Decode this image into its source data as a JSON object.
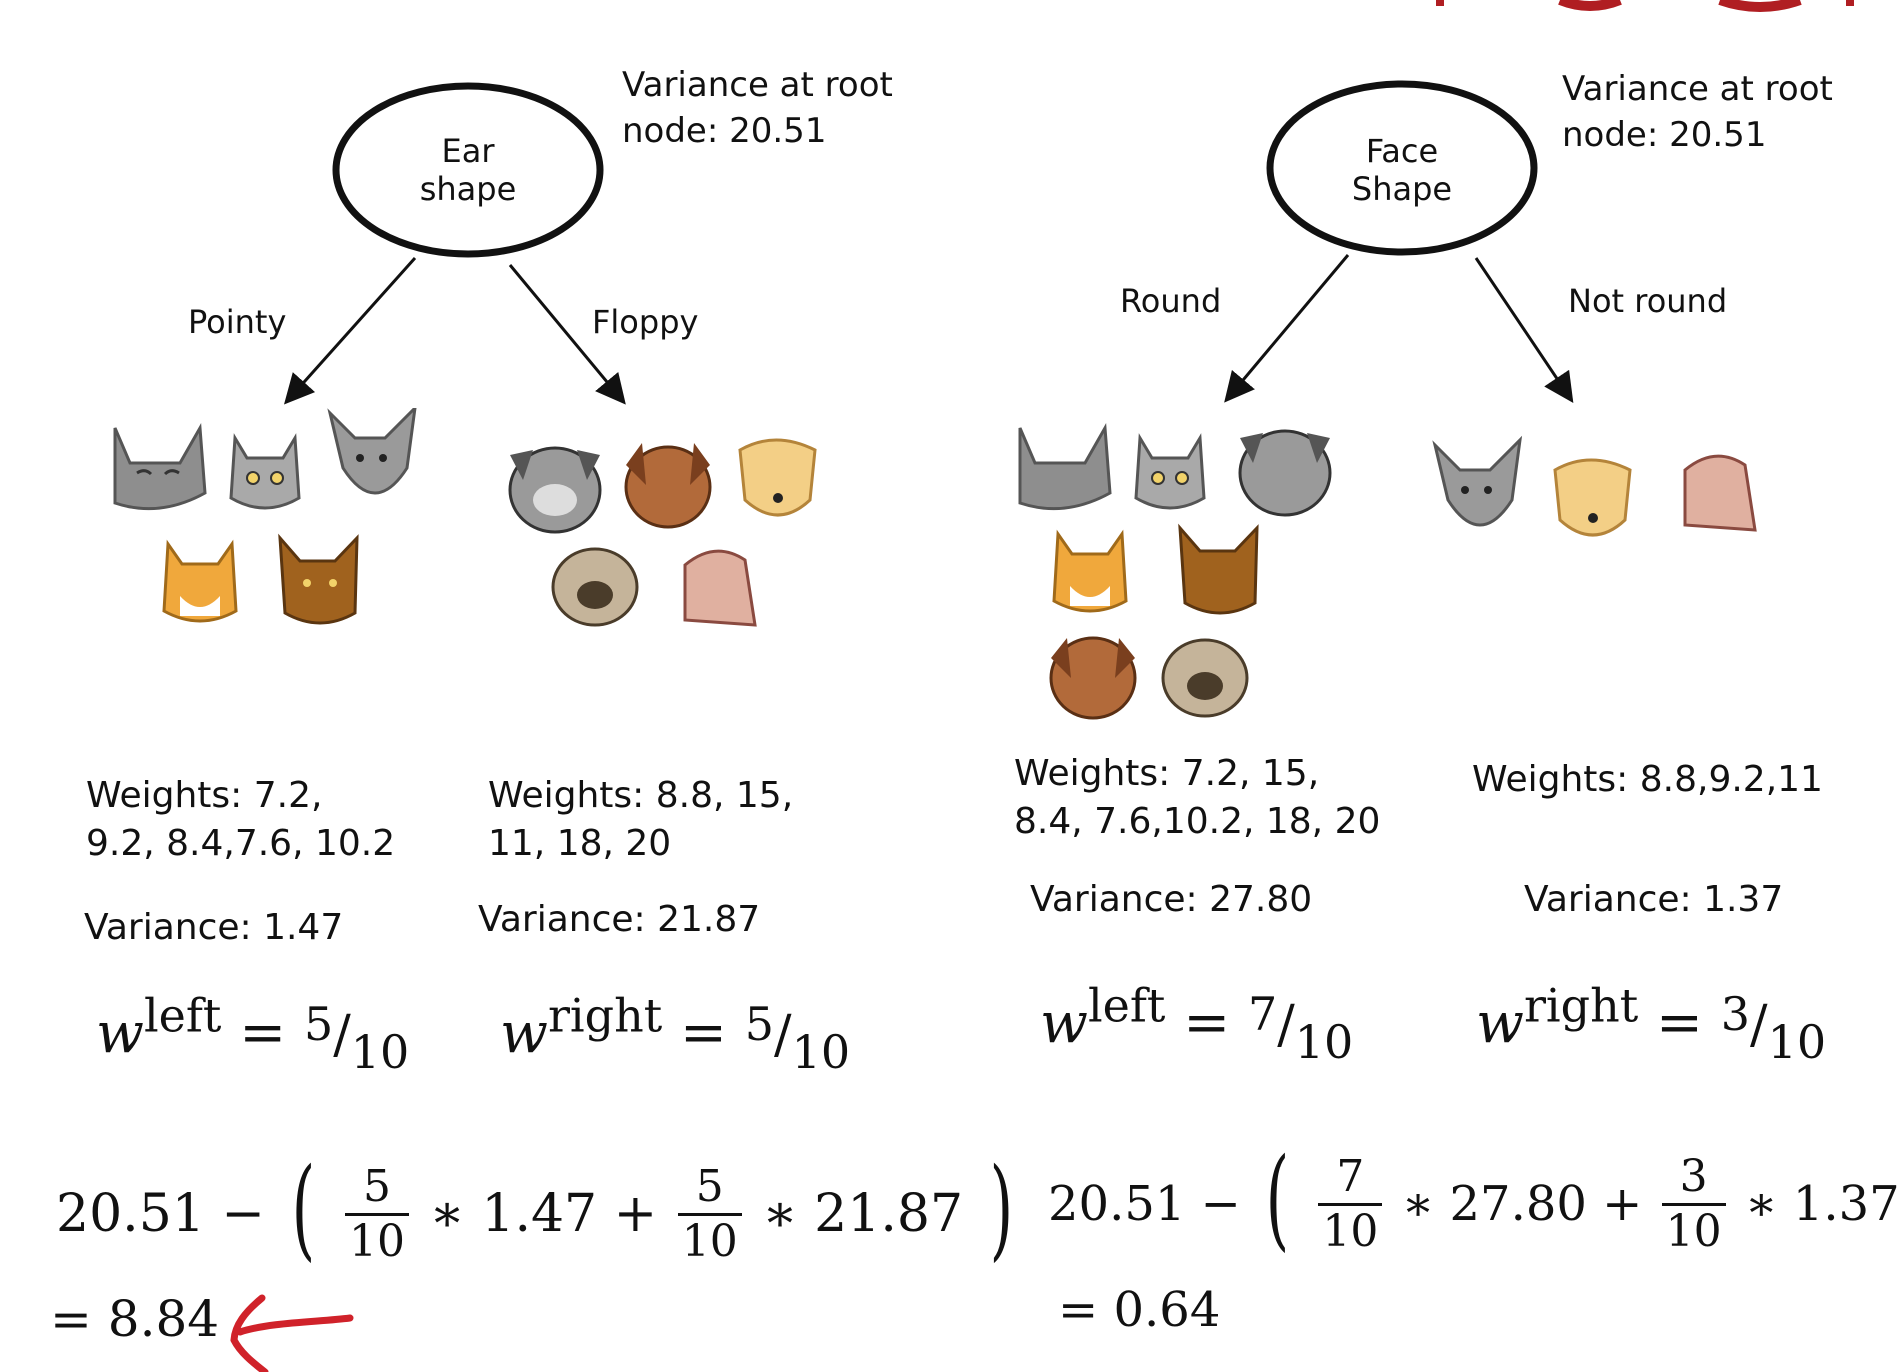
{
  "left_tree": {
    "root_label": "Ear\nshape",
    "root_variance": "Variance at root\nnode: 20.51",
    "branch_left": "Pointy",
    "branch_right": "Floppy",
    "left_weights": "Weights: 7.2,\n9.2, 8.4,7.6, 10.2",
    "right_weights": "Weights: 8.8, 15,\n11, 18, 20",
    "left_variance": "Variance: 1.47",
    "right_variance": "Variance: 21.87",
    "w_left_base": "w",
    "w_left_sup": "left",
    "w_left_eq": "=",
    "w_left_num": "5",
    "w_left_den": "10",
    "w_right_base": "w",
    "w_right_sup": "right",
    "w_right_eq": "=",
    "w_right_num": "5",
    "w_right_den": "10",
    "formula_lead": "20.51  −",
    "f1_num": "5",
    "f1_den": "10",
    "f1_tail": "∗ 1.47 +",
    "f2_num": "5",
    "f2_den": "10",
    "f2_tail": "∗ 21.87",
    "result": "= 8.84"
  },
  "right_tree": {
    "root_label": "Face\nShape",
    "root_variance": "Variance at root\nnode: 20.51",
    "branch_left": "Round",
    "branch_right": "Not round",
    "left_weights": "Weights: 7.2, 15,\n8.4, 7.6,10.2, 18, 20",
    "right_weights": "Weights: 8.8,9.2,11",
    "left_variance": "Variance: 27.80",
    "right_variance": "Variance: 1.37",
    "w_left_base": "w",
    "w_left_sup": "left",
    "w_left_eq": "=",
    "w_left_num": "7",
    "w_left_den": "10",
    "w_right_base": "w",
    "w_right_sup": "right",
    "w_right_eq": "=",
    "w_right_num": "3",
    "w_right_den": "10",
    "formula_lead": "20.51  −",
    "f1_num": "7",
    "f1_den": "10",
    "f1_tail": "∗  27.80 +",
    "f2_num": "3",
    "f2_den": "10",
    "f2_tail": "∗  1.37",
    "result": "= 0.64"
  },
  "colors": {
    "text": "#111111",
    "annotation_arrow": "#d0222a",
    "title_fragment": "#b01e22",
    "cat_gray": "#8e8e8e",
    "cat_orange": "#f0a83c",
    "cat_brown": "#a0621e",
    "dog_gray": "#9a9a9a",
    "dog_brown": "#b26a3a",
    "dog_yellow": "#f3cf86",
    "dog_pug": "#c5b49a",
    "dog_pink": "#e0b0a0"
  },
  "icons": {
    "left_pointy_group": [
      "cat-gray-icon",
      "cat-gray-small-icon",
      "cat-gray-pointy-icon",
      "cat-orange-icon",
      "cat-brown-icon"
    ],
    "left_floppy_group": [
      "dog-gray-icon",
      "dog-brown-icon",
      "dog-yellow-icon",
      "dog-pug-icon",
      "dog-pink-icon"
    ],
    "right_round_group": [
      "cat-gray-icon",
      "cat-gray-small-icon",
      "dog-gray-icon",
      "cat-orange-icon",
      "cat-brown-icon",
      "dog-brown-icon",
      "dog-pug-icon"
    ],
    "right_notround_group": [
      "cat-gray-pointy-icon",
      "dog-yellow-icon",
      "dog-pink-icon"
    ]
  }
}
